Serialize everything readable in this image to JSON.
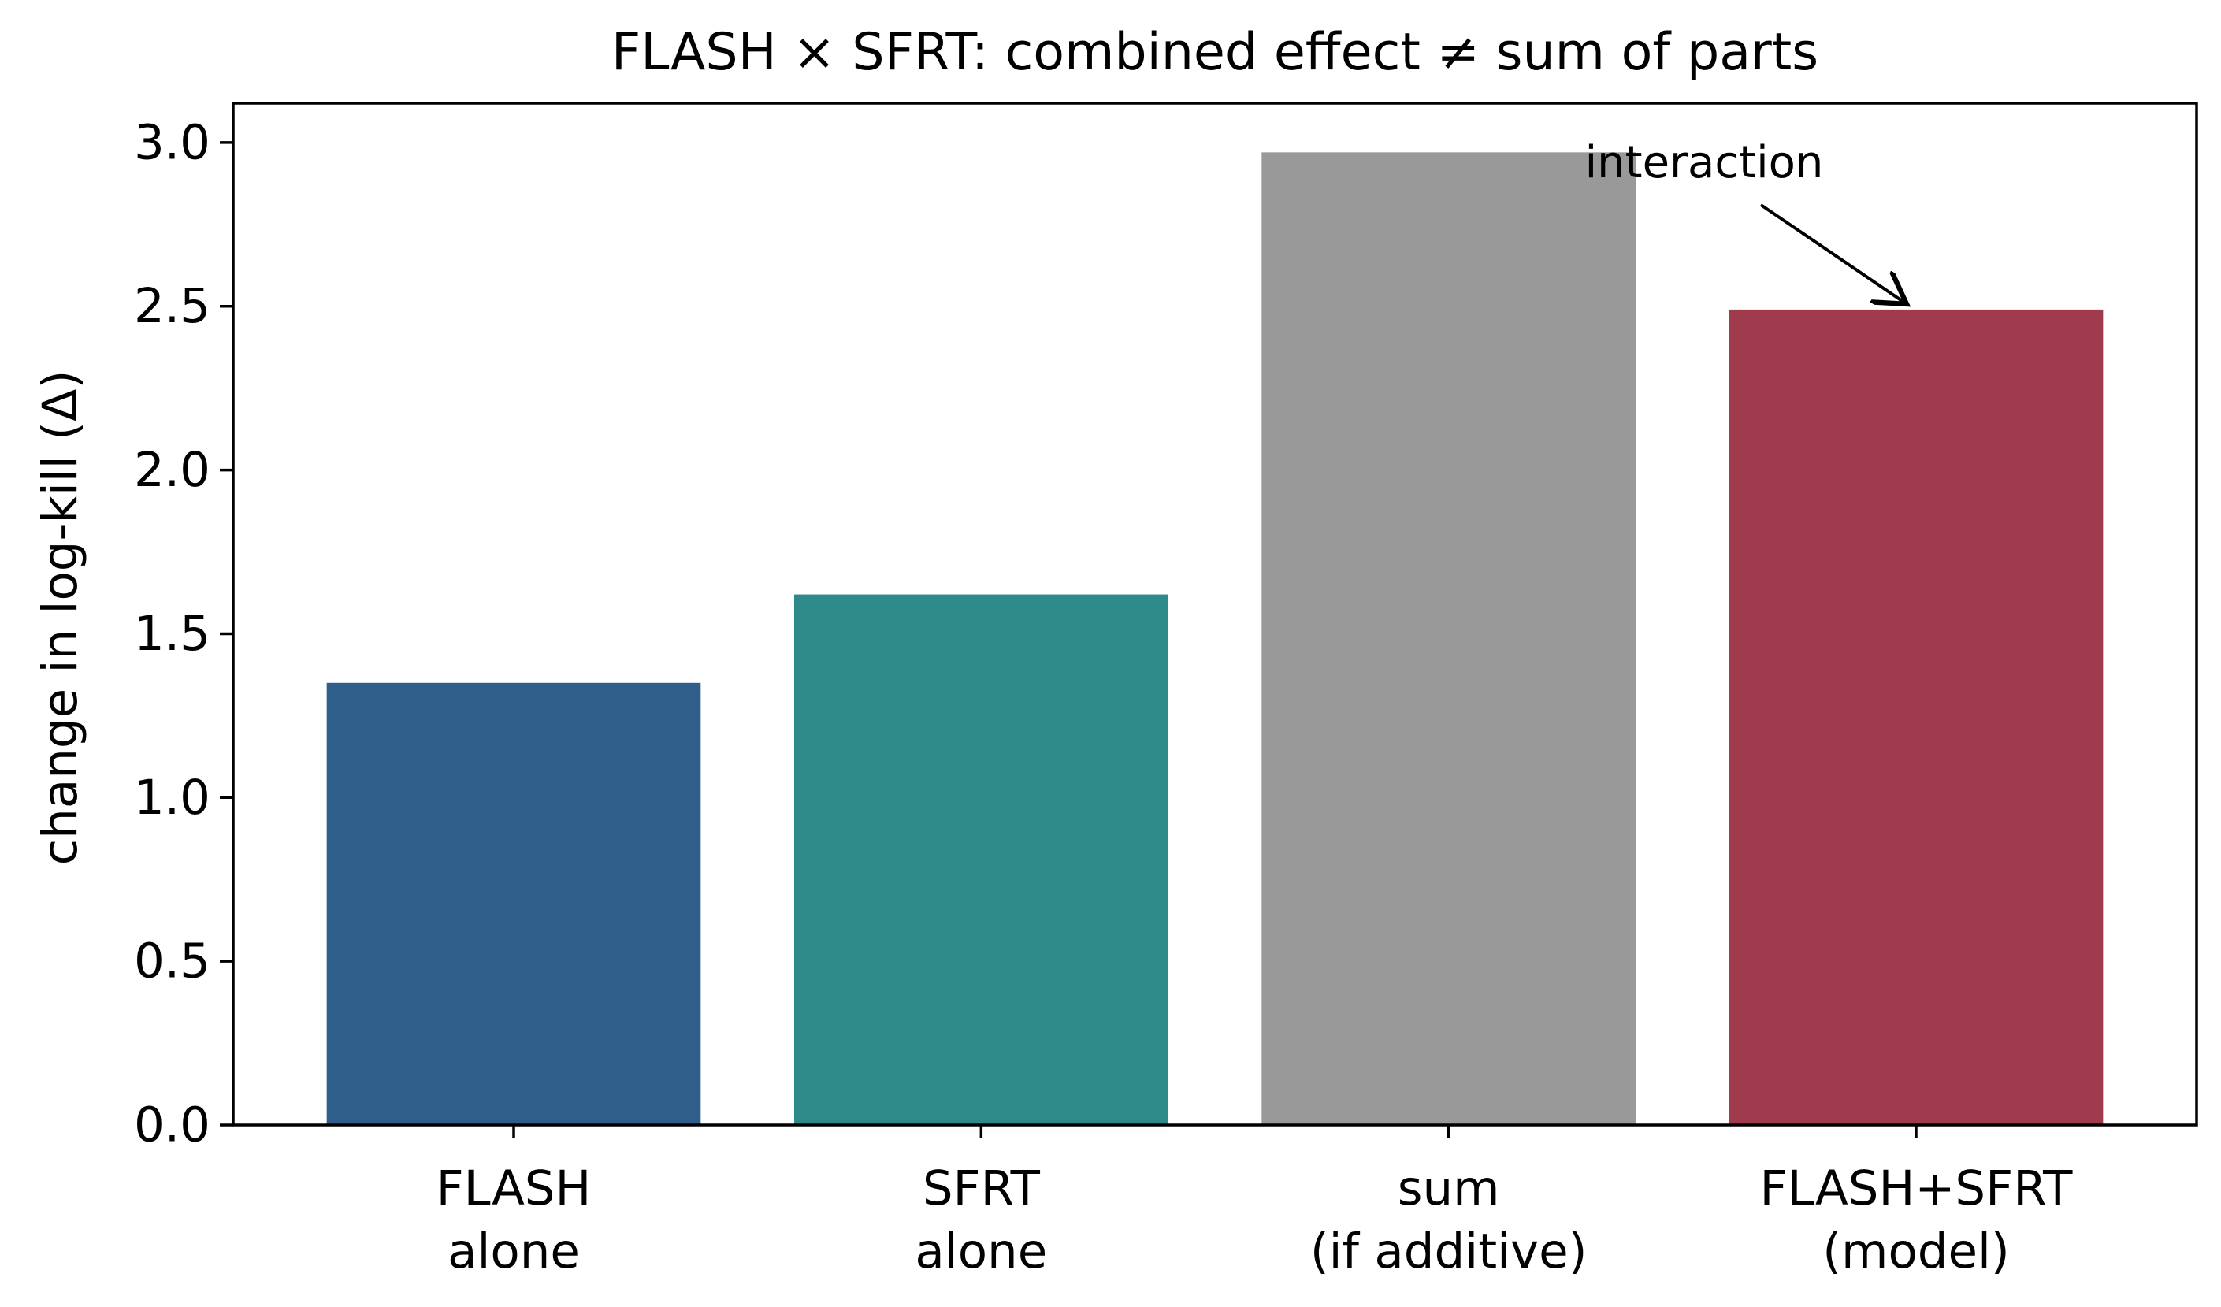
{
  "chart_data": {
    "type": "bar",
    "title": "FLASH × SFRT: combined effect ≠ sum of parts",
    "xlabel": "",
    "ylabel": "change in log-kill (Δ)",
    "ylim": [
      0,
      3.12
    ],
    "yticks": [
      0.0,
      0.5,
      1.0,
      1.5,
      2.0,
      2.5,
      3.0
    ],
    "ytick_labels": [
      "0.0",
      "0.5",
      "1.0",
      "1.5",
      "2.0",
      "2.5",
      "3.0"
    ],
    "grid": false,
    "legend": "none",
    "bars": [
      {
        "label_line1": "FLASH",
        "label_line2": "alone",
        "value": 1.35,
        "color": "#2f5e8b"
      },
      {
        "label_line1": "SFRT",
        "label_line2": "alone",
        "value": 1.62,
        "color": "#2e8a89"
      },
      {
        "label_line1": "sum",
        "label_line2": "(if additive)",
        "value": 2.97,
        "color": "#999999"
      },
      {
        "label_line1": "FLASH+SFRT",
        "label_line2": "(model)",
        "value": 2.49,
        "color": "#a03a4d"
      }
    ],
    "annotation": {
      "text": "interaction",
      "target_bar_index": 3
    }
  }
}
